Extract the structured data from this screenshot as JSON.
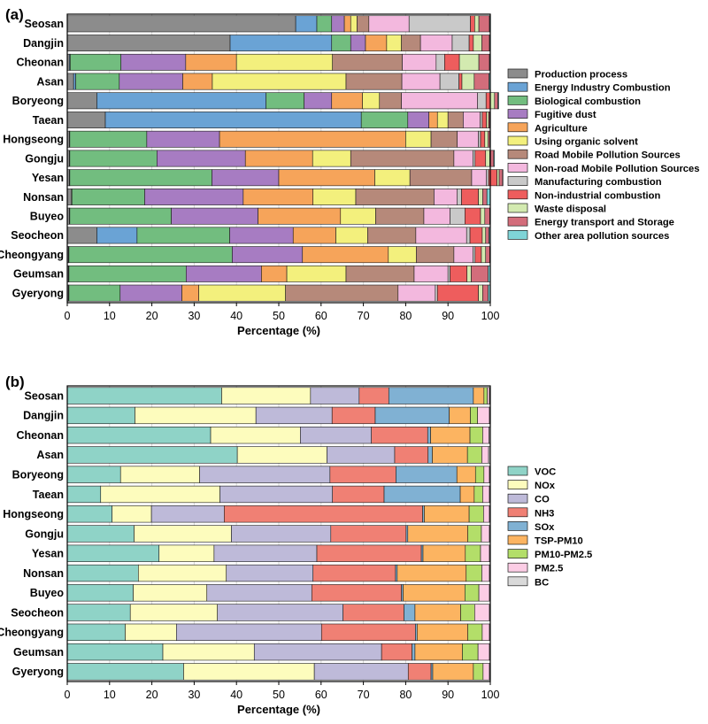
{
  "chart_data": [
    {
      "panel_label": "(a)",
      "type": "bar",
      "orientation": "horizontal",
      "stacked": true,
      "xlabel": "Percentage (%)",
      "xlim": [
        0,
        100
      ],
      "xticks": [
        0,
        10,
        20,
        30,
        40,
        50,
        60,
        70,
        80,
        90,
        100
      ],
      "legend_position": "right",
      "categories": [
        "Seosan",
        "Dangjin",
        "Cheonan",
        "Asan",
        "Boryeong",
        "Taean",
        "Hongseong",
        "Gongju",
        "Yesan",
        "Nonsan",
        "Buyeo",
        "Seocheon",
        "Cheongyang",
        "Geumsan",
        "Gyeryong"
      ],
      "series": [
        {
          "name": "Production process",
          "color": "#8c8c8c",
          "values": [
            54.0,
            38.5,
            0.5,
            1.5,
            7.0,
            9.0,
            0.5,
            0.5,
            0.5,
            1.0,
            0.5,
            7.0,
            0.3,
            0.3,
            0.3
          ]
        },
        {
          "name": "Energy Industry Combustion",
          "color": "#6aa3d5",
          "values": [
            5.0,
            24.0,
            0.2,
            0.5,
            40.0,
            60.5,
            0.1,
            0.1,
            0.1,
            0.1,
            0.1,
            9.5,
            0.1,
            0.1,
            0.1
          ]
        },
        {
          "name": "Biological combustion",
          "color": "#72bd7f",
          "values": [
            3.5,
            4.5,
            12.0,
            10.3,
            9.0,
            11.0,
            18.2,
            20.6,
            33.6,
            17.2,
            24.0,
            21.9,
            38.6,
            27.7,
            12.1
          ]
        },
        {
          "name": "Fugitive dust",
          "color": "#a77cc2",
          "values": [
            3.0,
            3.5,
            15.3,
            15.0,
            6.5,
            5.0,
            17.2,
            20.9,
            15.8,
            23.3,
            20.5,
            15.0,
            16.6,
            17.8,
            14.6
          ]
        },
        {
          "name": "Agriculture",
          "color": "#f6a45a",
          "values": [
            1.5,
            5.0,
            12.0,
            7.0,
            7.3,
            2.0,
            44.0,
            15.9,
            22.7,
            16.5,
            19.5,
            10.1,
            20.3,
            6.0,
            4.0
          ]
        },
        {
          "name": "Using organic solvent",
          "color": "#f3f07d",
          "values": [
            1.5,
            3.5,
            22.7,
            31.6,
            4.0,
            2.5,
            6.0,
            9.0,
            8.3,
            10.1,
            8.3,
            7.5,
            6.6,
            14.0,
            20.5
          ]
        },
        {
          "name": "Road Mobile Pollution Sources",
          "color": "#b6897a",
          "values": [
            2.8,
            4.5,
            16.5,
            13.2,
            5.2,
            3.6,
            6.2,
            24.4,
            14.6,
            18.5,
            11.4,
            11.4,
            8.9,
            16.1,
            26.6
          ]
        },
        {
          "name": "Non-road Mobile Pollution Sources",
          "color": "#f3b8de",
          "values": [
            9.5,
            7.5,
            8.0,
            9.0,
            18.0,
            4.0,
            5.0,
            4.5,
            3.5,
            5.5,
            6.2,
            12.0,
            4.5,
            8.0,
            8.8
          ]
        },
        {
          "name": "Manufacturing combustion",
          "color": "#c9c9c9",
          "values": [
            14.5,
            4.0,
            2.0,
            4.5,
            2.0,
            0.5,
            0.5,
            0.5,
            0.5,
            1.0,
            3.5,
            0.8,
            0.5,
            0.5,
            0.5
          ]
        },
        {
          "name": "Non-industrial combustion",
          "color": "#ee5d5d",
          "values": [
            1.0,
            1.0,
            3.5,
            0.7,
            1.0,
            1.0,
            1.0,
            2.5,
            2.0,
            4.0,
            3.7,
            2.9,
            1.5,
            4.0,
            9.7
          ]
        },
        {
          "name": "Waste disposal",
          "color": "#d3eab0",
          "values": [
            1.0,
            2.0,
            4.6,
            2.9,
            1.0,
            0.5,
            0.8,
            1.0,
            0.5,
            1.0,
            1.0,
            0.8,
            1.0,
            1.0,
            1.0
          ]
        },
        {
          "name": "Energy transport and Storage",
          "color": "#d36d7b",
          "values": [
            2.5,
            1.8,
            2.5,
            3.5,
            0.8,
            0.3,
            0.4,
            0.9,
            0.8,
            1.0,
            1.2,
            0.8,
            1.0,
            4.0,
            1.3
          ]
        },
        {
          "name": "Other area pollution sources",
          "color": "#7fd4d7",
          "values": [
            0.2,
            0.2,
            0.2,
            0.3,
            0.2,
            0.1,
            0.1,
            0.2,
            0.1,
            0.8,
            0.1,
            0.3,
            0.1,
            0.5,
            0.5
          ]
        }
      ]
    },
    {
      "panel_label": "(b)",
      "type": "bar",
      "orientation": "horizontal",
      "stacked": true,
      "xlabel": "Percentage (%)",
      "xlim": [
        0,
        100
      ],
      "xticks": [
        0,
        10,
        20,
        30,
        40,
        50,
        60,
        70,
        80,
        90,
        100
      ],
      "legend_position": "right",
      "categories": [
        "Seosan",
        "Dangjin",
        "Cheonan",
        "Asan",
        "Boryeong",
        "Taean",
        "Hongseong",
        "Gongju",
        "Yesan",
        "Nonsan",
        "Buyeo",
        "Seocheon",
        "Cheongyang",
        "Geumsan",
        "Gyeryong"
      ],
      "series": [
        {
          "name": "VOC",
          "color": "#8fd3c7",
          "values": [
            36.5,
            16.0,
            33.9,
            40.2,
            12.6,
            7.9,
            10.6,
            15.8,
            21.7,
            16.8,
            15.6,
            14.9,
            13.7,
            22.6,
            27.5
          ]
        },
        {
          "name": "NOx",
          "color": "#fdfcbd",
          "values": [
            21.0,
            28.6,
            21.2,
            21.2,
            18.7,
            28.2,
            9.3,
            23.0,
            13.0,
            20.8,
            17.4,
            20.6,
            12.1,
            21.6,
            30.9
          ]
        },
        {
          "name": "CO",
          "color": "#bebad9",
          "values": [
            11.5,
            18.0,
            16.8,
            16.0,
            30.8,
            26.6,
            17.2,
            23.5,
            24.3,
            20.5,
            24.8,
            29.7,
            34.3,
            30.1,
            22.2
          ]
        },
        {
          "name": "NH3",
          "color": "#f08074",
          "values": [
            7.0,
            10.2,
            13.3,
            7.9,
            15.6,
            12.2,
            46.9,
            17.8,
            24.7,
            19.5,
            21.2,
            14.4,
            22.2,
            7.2,
            5.4
          ]
        },
        {
          "name": "SOx",
          "color": "#80b1d3",
          "values": [
            20.0,
            17.5,
            0.7,
            1.0,
            14.4,
            18.0,
            0.4,
            0.4,
            0.4,
            0.4,
            0.4,
            2.6,
            0.4,
            0.7,
            0.4
          ]
        },
        {
          "name": "TSP-PM10",
          "color": "#fcb461",
          "values": [
            2.5,
            5.0,
            9.3,
            8.3,
            4.4,
            3.3,
            10.6,
            14.2,
            10.0,
            16.3,
            14.6,
            10.8,
            12.0,
            11.2,
            9.6
          ]
        },
        {
          "name": "PM10-PM2.5",
          "color": "#b3de69",
          "values": [
            0.8,
            1.7,
            3.0,
            3.4,
            2.0,
            2.0,
            3.4,
            3.2,
            3.6,
            3.7,
            3.3,
            3.3,
            3.4,
            3.7,
            2.3
          ]
        },
        {
          "name": "PM2.5",
          "color": "#fccde5",
          "values": [
            0.5,
            2.8,
            1.5,
            1.6,
            1.3,
            1.6,
            1.4,
            1.9,
            2.1,
            1.8,
            2.5,
            3.5,
            1.7,
            2.7,
            1.5
          ]
        },
        {
          "name": "BC",
          "color": "#d9d9d9",
          "values": [
            0.2,
            0.2,
            0.3,
            0.4,
            0.2,
            0.2,
            0.2,
            0.2,
            0.2,
            0.2,
            0.2,
            0.2,
            0.2,
            0.2,
            0.2
          ]
        }
      ]
    }
  ]
}
